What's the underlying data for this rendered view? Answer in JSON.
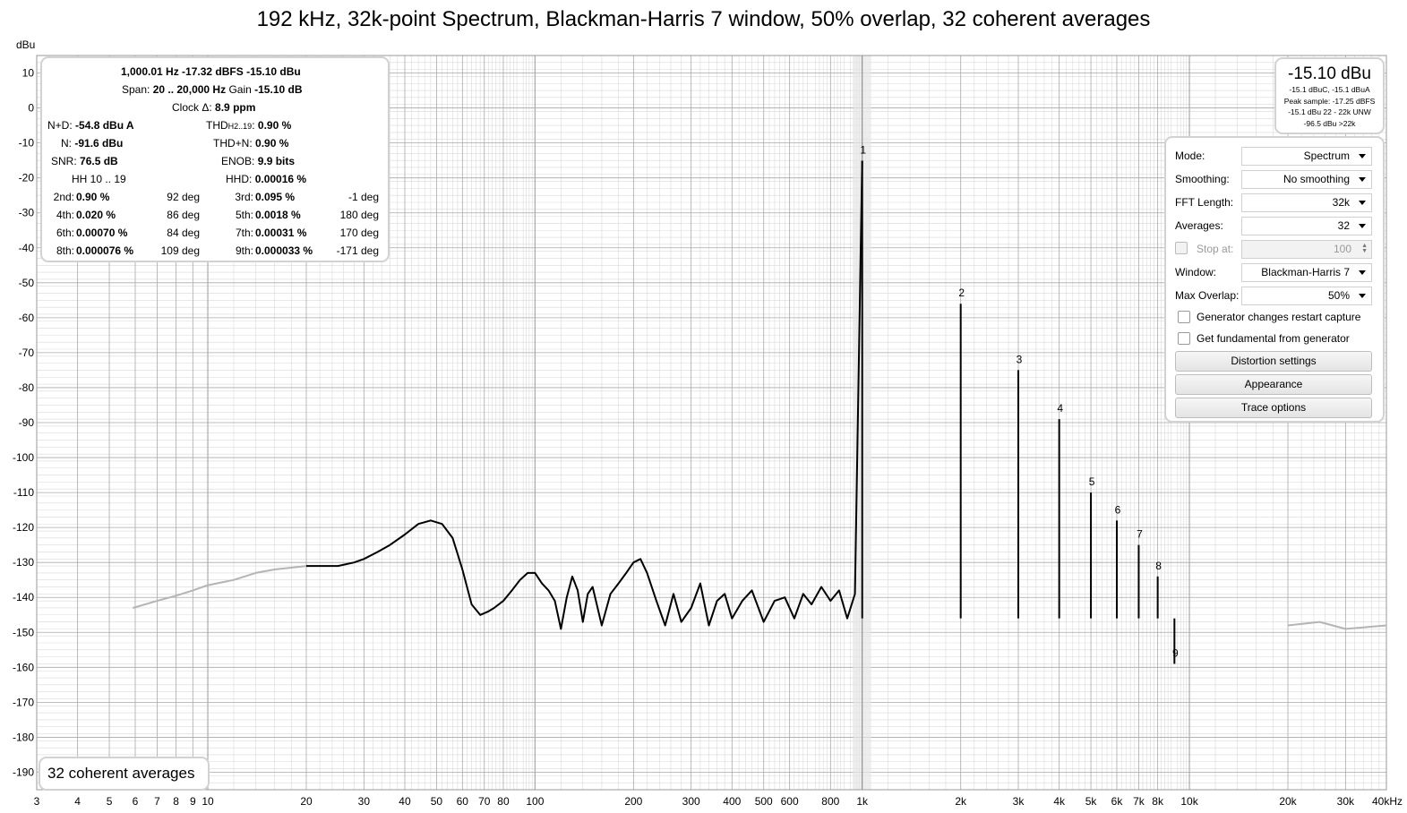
{
  "title": "192 kHz, 32k-point Spectrum, Blackman-Harris 7 window, 50% overlap, 32 coherent averages",
  "colors": {
    "trace": "#000000",
    "trace_out_of_band": "#b4b4b4",
    "grid_major": "#a9a9a9",
    "grid_minor": "#d9d9d9",
    "panel_border": "#d2d2d2",
    "cursor_band": "#e6e6e6"
  },
  "stats": {
    "line1": "1,000.01 Hz  -17.32 dBFS  -15.10 dBu",
    "span_label": "Span:",
    "span_value": "20 .. 20,000 Hz",
    "gain_label": "Gain",
    "gain_value": "-15.10 dB",
    "clock_label": "Clock Δ:",
    "clock_value": "8.9 ppm",
    "nd_label": "N+D:",
    "nd_value": "-54.8 dBu A",
    "thd_label": "THD",
    "thd_sub": "H2..19",
    "thd_colon": ":",
    "thd_value": "0.90 %",
    "n_label": "N:",
    "n_value": "-91.6 dBu",
    "thdn_label": "THD+N:",
    "thdn_value": "0.90 %",
    "snr_label": "SNR:",
    "snr_value": "76.5 dB",
    "enob_label": "ENOB:",
    "enob_value": "9.9 bits",
    "hh_label": "HH 10 .. 19",
    "hhd_label": "HHD:",
    "hhd_value": "0.00016 %",
    "harmonics": [
      {
        "l1": "2nd:",
        "v1": "0.90 %",
        "p1": "92 deg",
        "l2": "3rd:",
        "v2": "0.095 %",
        "p2": "-1 deg"
      },
      {
        "l1": "4th:",
        "v1": "0.020 %",
        "p1": "86 deg",
        "l2": "5th:",
        "v2": "0.0018 %",
        "p2": "180 deg"
      },
      {
        "l1": "6th:",
        "v1": "0.00070 %",
        "p1": "84 deg",
        "l2": "7th:",
        "v2": "0.00031 %",
        "p2": "170 deg"
      },
      {
        "l1": "8th:",
        "v1": "0.000076 %",
        "p1": "109 deg",
        "l2": "9th:",
        "v2": "0.000033 %",
        "p2": "-171 deg"
      }
    ]
  },
  "level": {
    "main": "-15.10 dBu",
    "line1": "-15.1 dBuC, -15.1 dBuA",
    "line2": "Peak sample: -17.25 dBFS",
    "line3": "-15.1 dBu 22 - 22k UNW",
    "line4": "-96.5 dBu >22k"
  },
  "controls": {
    "mode_label": "Mode:",
    "mode_value": "Spectrum",
    "smoothing_label": "Smoothing:",
    "smoothing_value": "No smoothing",
    "fft_label": "FFT Length:",
    "fft_value": "32k",
    "averages_label": "Averages:",
    "averages_value": "32",
    "stop_label": "Stop at:",
    "stop_value": "100",
    "window_label": "Window:",
    "window_value": "Blackman-Harris 7",
    "overlap_label": "Max Overlap:",
    "overlap_value": "50%",
    "gen_restart_label": "Generator changes restart capture",
    "gen_fund_label": "Get fundamental from generator",
    "distortion_button": "Distortion settings",
    "appearance_button": "Appearance",
    "trace_button": "Trace options"
  },
  "averages_badge": "32 coherent averages",
  "chart_data": {
    "type": "line",
    "title": "192 kHz, 32k-point Spectrum, Blackman-Harris 7 window, 50% overlap, 32 coherent averages",
    "ylabel": "dBu",
    "xscale": "log",
    "xlim": [
      3,
      40000
    ],
    "ylim": [
      -195,
      15
    ],
    "grid": true,
    "x_ticks": [
      3,
      4,
      5,
      6,
      7,
      8,
      9,
      10,
      20,
      30,
      40,
      50,
      60,
      70,
      80,
      100,
      200,
      300,
      400,
      500,
      600,
      800,
      1000,
      2000,
      3000,
      4000,
      5000,
      6000,
      7000,
      8000,
      10000,
      20000,
      30000,
      40000
    ],
    "x_tick_labels": [
      "3",
      "4",
      "5",
      "6",
      "7",
      "8",
      "9",
      "10",
      "20",
      "30",
      "40",
      "50",
      "60",
      "70",
      "80",
      "100",
      "200",
      "300",
      "400",
      "500",
      "600",
      "800",
      "1k",
      "2k",
      "3k",
      "4k",
      "5k",
      "6k",
      "7k",
      "8k",
      "10k",
      "20k",
      "30k",
      "40kHz"
    ],
    "y_ticks": [
      10,
      0,
      -10,
      -20,
      -30,
      -40,
      -50,
      -60,
      -70,
      -80,
      -90,
      -100,
      -110,
      -120,
      -130,
      -140,
      -150,
      -160,
      -170,
      -180,
      -190
    ],
    "y_tick_labels": [
      "10",
      "0",
      "-10",
      "-20",
      "-30",
      "-40",
      "-50",
      "-60",
      "-70",
      "-80",
      "-90",
      "-100",
      "-110",
      "-120",
      "-130",
      "-140",
      "-150",
      "-160",
      "-170",
      "-180",
      "-190"
    ],
    "cursor_frequency": 1000,
    "harmonic_peaks": [
      {
        "label": "1",
        "freq": 1000,
        "dbu": -15.1
      },
      {
        "label": "2",
        "freq": 2000,
        "dbu": -56
      },
      {
        "label": "3",
        "freq": 3000,
        "dbu": -75
      },
      {
        "label": "4",
        "freq": 4000,
        "dbu": -89
      },
      {
        "label": "5",
        "freq": 5000,
        "dbu": -110
      },
      {
        "label": "6",
        "freq": 6000,
        "dbu": -118
      },
      {
        "label": "7",
        "freq": 7000,
        "dbu": -125
      },
      {
        "label": "8",
        "freq": 8000,
        "dbu": -134
      },
      {
        "label": "9",
        "freq": 9000,
        "dbu": -159
      }
    ],
    "series": [
      {
        "role": "below-band",
        "color": "#b4b4b4",
        "x": [
          5.9,
          7,
          8,
          9,
          10,
          12,
          14,
          16,
          18,
          20
        ],
        "y": [
          -143,
          -141,
          -139.5,
          -138,
          -136.5,
          -135,
          -133,
          -132,
          -131.5,
          -131
        ]
      },
      {
        "role": "in-band",
        "color": "#000000",
        "x": [
          20,
          22,
          25,
          28,
          30,
          33,
          36,
          40,
          44,
          48,
          52,
          56,
          60,
          64,
          68,
          72,
          75,
          80,
          85,
          90,
          95,
          100,
          105,
          110,
          115,
          120,
          125,
          130,
          135,
          140,
          145,
          150,
          160,
          170,
          180,
          190,
          200,
          210,
          220,
          235,
          250,
          265,
          280,
          300,
          320,
          340,
          360,
          380,
          400,
          430,
          460,
          500,
          540,
          580,
          620,
          660,
          700,
          750,
          800,
          850,
          900,
          950,
          1000
        ],
        "y": [
          -131,
          -131,
          -131,
          -130,
          -129,
          -127,
          -125,
          -122,
          -119,
          -118,
          -119,
          -123,
          -132,
          -142,
          -145,
          -144,
          -143,
          -141,
          -138,
          -135,
          -133,
          -133,
          -136,
          -138,
          -141,
          -149,
          -140,
          -134,
          -138,
          -147,
          -139,
          -137,
          -148,
          -139,
          -136,
          -133,
          -130,
          -129,
          -133,
          -141,
          -148,
          -139,
          -147,
          -143,
          -136,
          -148,
          -141,
          -139,
          -146,
          -141,
          -138,
          -147,
          -141,
          -140,
          -146,
          -139,
          -142,
          -137,
          -141,
          -138,
          -146,
          -139,
          -15.1
        ]
      },
      {
        "role": "above-band",
        "color": "#b4b4b4",
        "x": [
          20000,
          25000,
          30000,
          40000
        ],
        "y": [
          -148,
          -147,
          -149,
          -148
        ]
      }
    ]
  }
}
